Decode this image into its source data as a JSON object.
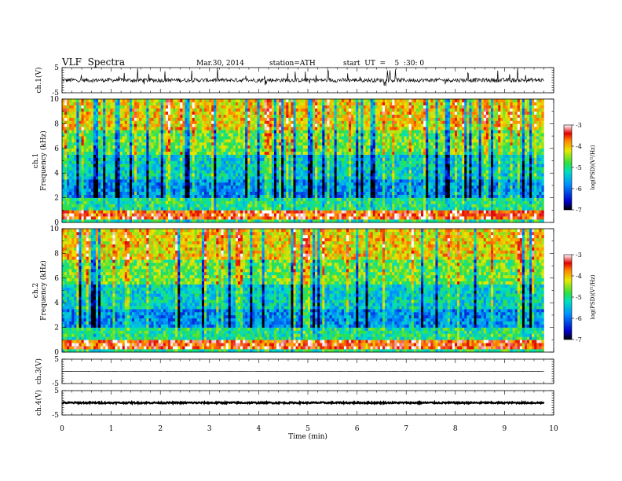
{
  "header": {
    "title": "VLF  Spectra",
    "date": "Mar.30, 2014",
    "station": "station=ATH",
    "start": "start  UT  =    5  :30: 0"
  },
  "chart_data": [
    {
      "type": "line",
      "name": "ch1-waveform",
      "ylabel": "ch.1(V)",
      "ylim": [
        -5,
        5
      ],
      "yticks": [
        "5",
        "-5"
      ],
      "xlim": [
        0,
        10
      ],
      "signal_extent_min": 9.8,
      "baseline_v": 0.0,
      "noise_amplitude_v": 0.8,
      "spike_amplitude_v": 3.5
    },
    {
      "type": "heatmap",
      "name": "ch1-spectrogram",
      "ylabel_top": "ch.1",
      "ylabel": "Frequency  (kHz)",
      "ylim": [
        0,
        10
      ],
      "yticks": [
        "0",
        "2",
        "4",
        "6",
        "8",
        "10"
      ],
      "xlim": [
        0,
        10
      ],
      "signal_extent_min": 9.8,
      "colorbar": {
        "label": "log(PSD)(V²/Hz)",
        "range": [
          -7,
          -3
        ],
        "ticks": [
          "-3",
          "-4",
          "-5",
          "-6",
          "-7"
        ]
      }
    },
    {
      "type": "heatmap",
      "name": "ch2-spectrogram",
      "ylabel_top": "ch.2",
      "ylabel": "Frequency  (kHz)",
      "ylim": [
        0,
        10
      ],
      "yticks": [
        "0",
        "2",
        "4",
        "6",
        "8",
        "10"
      ],
      "xlim": [
        0,
        10
      ],
      "signal_extent_min": 9.8,
      "colorbar": {
        "label": "log(PSD)(V²/Hz)",
        "range": [
          -7,
          -3
        ],
        "ticks": [
          "-3",
          "-4",
          "-5",
          "-6",
          "-7"
        ]
      }
    },
    {
      "type": "line",
      "name": "ch3-waveform",
      "ylabel": "ch.3(V)",
      "ylim": [
        -5,
        5
      ],
      "yticks": [
        "5",
        "-5"
      ],
      "xlim": [
        0,
        10
      ],
      "signal_extent_min": 9.8,
      "baseline_v": 0.0,
      "noise_amplitude_v": 0.05
    },
    {
      "type": "line",
      "name": "ch4-waveform",
      "ylabel": "ch.4(V)",
      "ylim": [
        -5,
        5
      ],
      "yticks": [
        "5",
        "-5"
      ],
      "xlim": [
        0,
        10
      ],
      "xticks": [
        "0",
        "1",
        "2",
        "3",
        "4",
        "5",
        "6",
        "7",
        "8",
        "9",
        "10"
      ],
      "xlabel": "Time  (min)",
      "signal_extent_min": 9.8,
      "baseline_v": 0.0,
      "noise_amplitude_v": 0.3
    }
  ]
}
